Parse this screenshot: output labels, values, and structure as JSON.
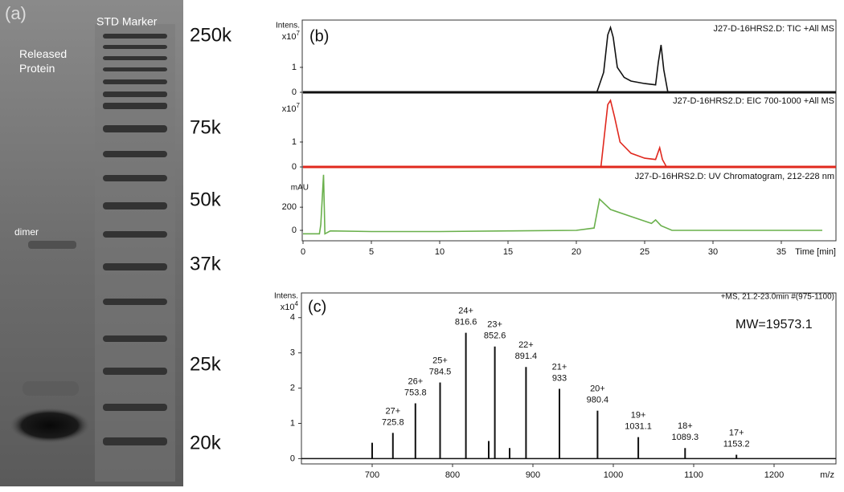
{
  "gel": {
    "panel_label": "(a)",
    "sample_lane": [
      "Released",
      "Protein"
    ],
    "marker_lane": "STD Marker",
    "band_label": "dimer",
    "markers": [
      "250k",
      "75k",
      "50k",
      "37k",
      "25k",
      "20k"
    ]
  },
  "chart_data": [
    {
      "type": "line",
      "panel_label": "(b)",
      "title": "J27-D-16HRS2.D: TIC +All MS",
      "y_label": "Intens.",
      "y_scale": {
        "base": "x10",
        "exponent": "7"
      },
      "color": "#111111",
      "xlim": [
        0,
        39
      ],
      "ylim": [
        0,
        2.8
      ],
      "yticks": [
        0,
        1
      ],
      "x": [
        0,
        21.5,
        22.0,
        22.3,
        22.5,
        22.7,
        23.0,
        23.5,
        24,
        25,
        25.8,
        26.0,
        26.2,
        26.4,
        26.7,
        39
      ],
      "values": [
        0,
        0,
        0.8,
        2.3,
        2.6,
        2.2,
        1.0,
        0.6,
        0.45,
        0.35,
        0.3,
        1.2,
        1.9,
        0.9,
        0,
        0
      ]
    },
    {
      "type": "line",
      "title": "J27-D-16HRS2.D: EIC 700-1000 +All MS",
      "y_scale": {
        "base": "x10",
        "exponent": "7"
      },
      "color": "#e0281e",
      "xlim": [
        0,
        39
      ],
      "ylim": [
        0,
        2.9
      ],
      "yticks": [
        0,
        1
      ],
      "x": [
        0,
        21.8,
        22.1,
        22.3,
        22.5,
        22.8,
        23.2,
        24,
        25,
        25.8,
        26.1,
        26.3,
        26.6,
        39
      ],
      "values": [
        0,
        0,
        1.5,
        2.5,
        2.67,
        2.0,
        1.0,
        0.55,
        0.35,
        0.3,
        0.77,
        0.3,
        0,
        0
      ]
    },
    {
      "type": "line",
      "title": "J27-D-16HRS2.D: UV Chromatogram, 212-228 nm",
      "y_label": "mAU",
      "color": "#6ab04c",
      "xlim": [
        0,
        39
      ],
      "ylim": [
        -90,
        520
      ],
      "yticks": [
        0,
        200
      ],
      "xticks": [
        0,
        5,
        10,
        15,
        20,
        25,
        30,
        35
      ],
      "x_label": "Time [min]",
      "x": [
        0,
        1.2,
        1.3,
        1.5,
        1.6,
        2,
        5,
        10,
        15,
        20,
        21.3,
        21.7,
        22.5,
        24,
        25.5,
        25.8,
        26.2,
        27,
        38
      ],
      "values": [
        -30,
        -30,
        50,
        480,
        -30,
        -5,
        -10,
        -10,
        -5,
        0,
        20,
        270,
        180,
        120,
        60,
        90,
        40,
        0,
        0
      ]
    },
    {
      "type": "stem",
      "panel_label": "(c)",
      "title": "+MS, 21.2-23.0min #(975-1100)",
      "annotation": "MW=19573.1",
      "y_label": "Intens.",
      "y_scale": {
        "base": "x10",
        "exponent": "4"
      },
      "x_label": "m/z",
      "color": "#111111",
      "xlim": [
        612,
        1277
      ],
      "ylim": [
        -0.15,
        4.7
      ],
      "xticks": [
        700,
        800,
        900,
        1000,
        1100,
        1200
      ],
      "yticks": [
        0,
        1,
        2,
        3,
        4
      ],
      "x": [
        700,
        725.8,
        753.8,
        784.5,
        816.6,
        845,
        852.6,
        871,
        891.4,
        933.0,
        980.4,
        1031.1,
        1089.3,
        1153.2
      ],
      "values": [
        0.45,
        0.73,
        1.57,
        2.16,
        3.57,
        0.5,
        3.18,
        0.3,
        2.6,
        1.98,
        1.36,
        0.61,
        0.3,
        0.11
      ],
      "charges": [
        null,
        "27+",
        "26+",
        "25+",
        "24+",
        null,
        "23+",
        null,
        "22+",
        "21+",
        "20+",
        "19+",
        "18+",
        "17+"
      ]
    }
  ]
}
